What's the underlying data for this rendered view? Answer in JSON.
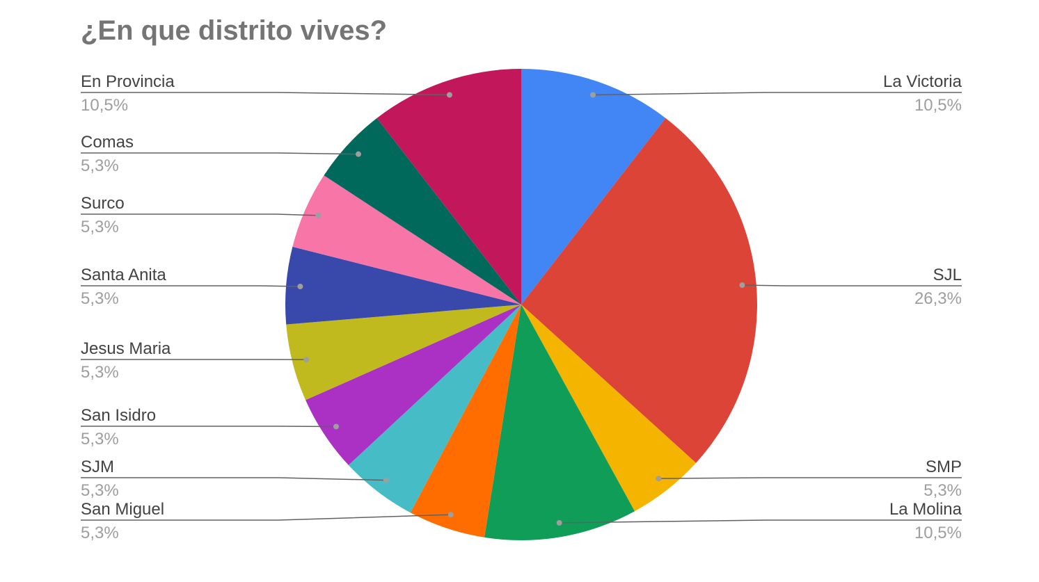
{
  "chart_data": {
    "type": "pie",
    "title": "¿En que distrito vives?",
    "slices": [
      {
        "label": "La Victoria",
        "value": 10.5,
        "percent_label": "10,5%",
        "color": "#4285f4"
      },
      {
        "label": "SJL",
        "value": 26.3,
        "percent_label": "26,3%",
        "color": "#db4437"
      },
      {
        "label": "SMP",
        "value": 5.3,
        "percent_label": "5,3%",
        "color": "#f4b400"
      },
      {
        "label": "La Molina",
        "value": 10.5,
        "percent_label": "10,5%",
        "color": "#0f9d58"
      },
      {
        "label": "San Miguel",
        "value": 5.3,
        "percent_label": "5,3%",
        "color": "#ff6d00"
      },
      {
        "label": "SJM",
        "value": 5.3,
        "percent_label": "5,3%",
        "color": "#46bdc6"
      },
      {
        "label": "San Isidro",
        "value": 5.3,
        "percent_label": "5,3%",
        "color": "#ab30c4"
      },
      {
        "label": "Jesus Maria",
        "value": 5.3,
        "percent_label": "5,3%",
        "color": "#c0ba1f"
      },
      {
        "label": "Santa Anita",
        "value": 5.3,
        "percent_label": "5,3%",
        "color": "#3949ab"
      },
      {
        "label": "Surco",
        "value": 5.3,
        "percent_label": "5,3%",
        "color": "#f776a7"
      },
      {
        "label": "Comas",
        "value": 5.3,
        "percent_label": "5,3%",
        "color": "#00695c"
      },
      {
        "label": "En Provincia",
        "value": 10.5,
        "percent_label": "10,5%",
        "color": "#c2185b"
      }
    ],
    "start_angle_deg": 0,
    "direction": "clockwise",
    "legend": "none",
    "label_style": "callout-lines"
  }
}
